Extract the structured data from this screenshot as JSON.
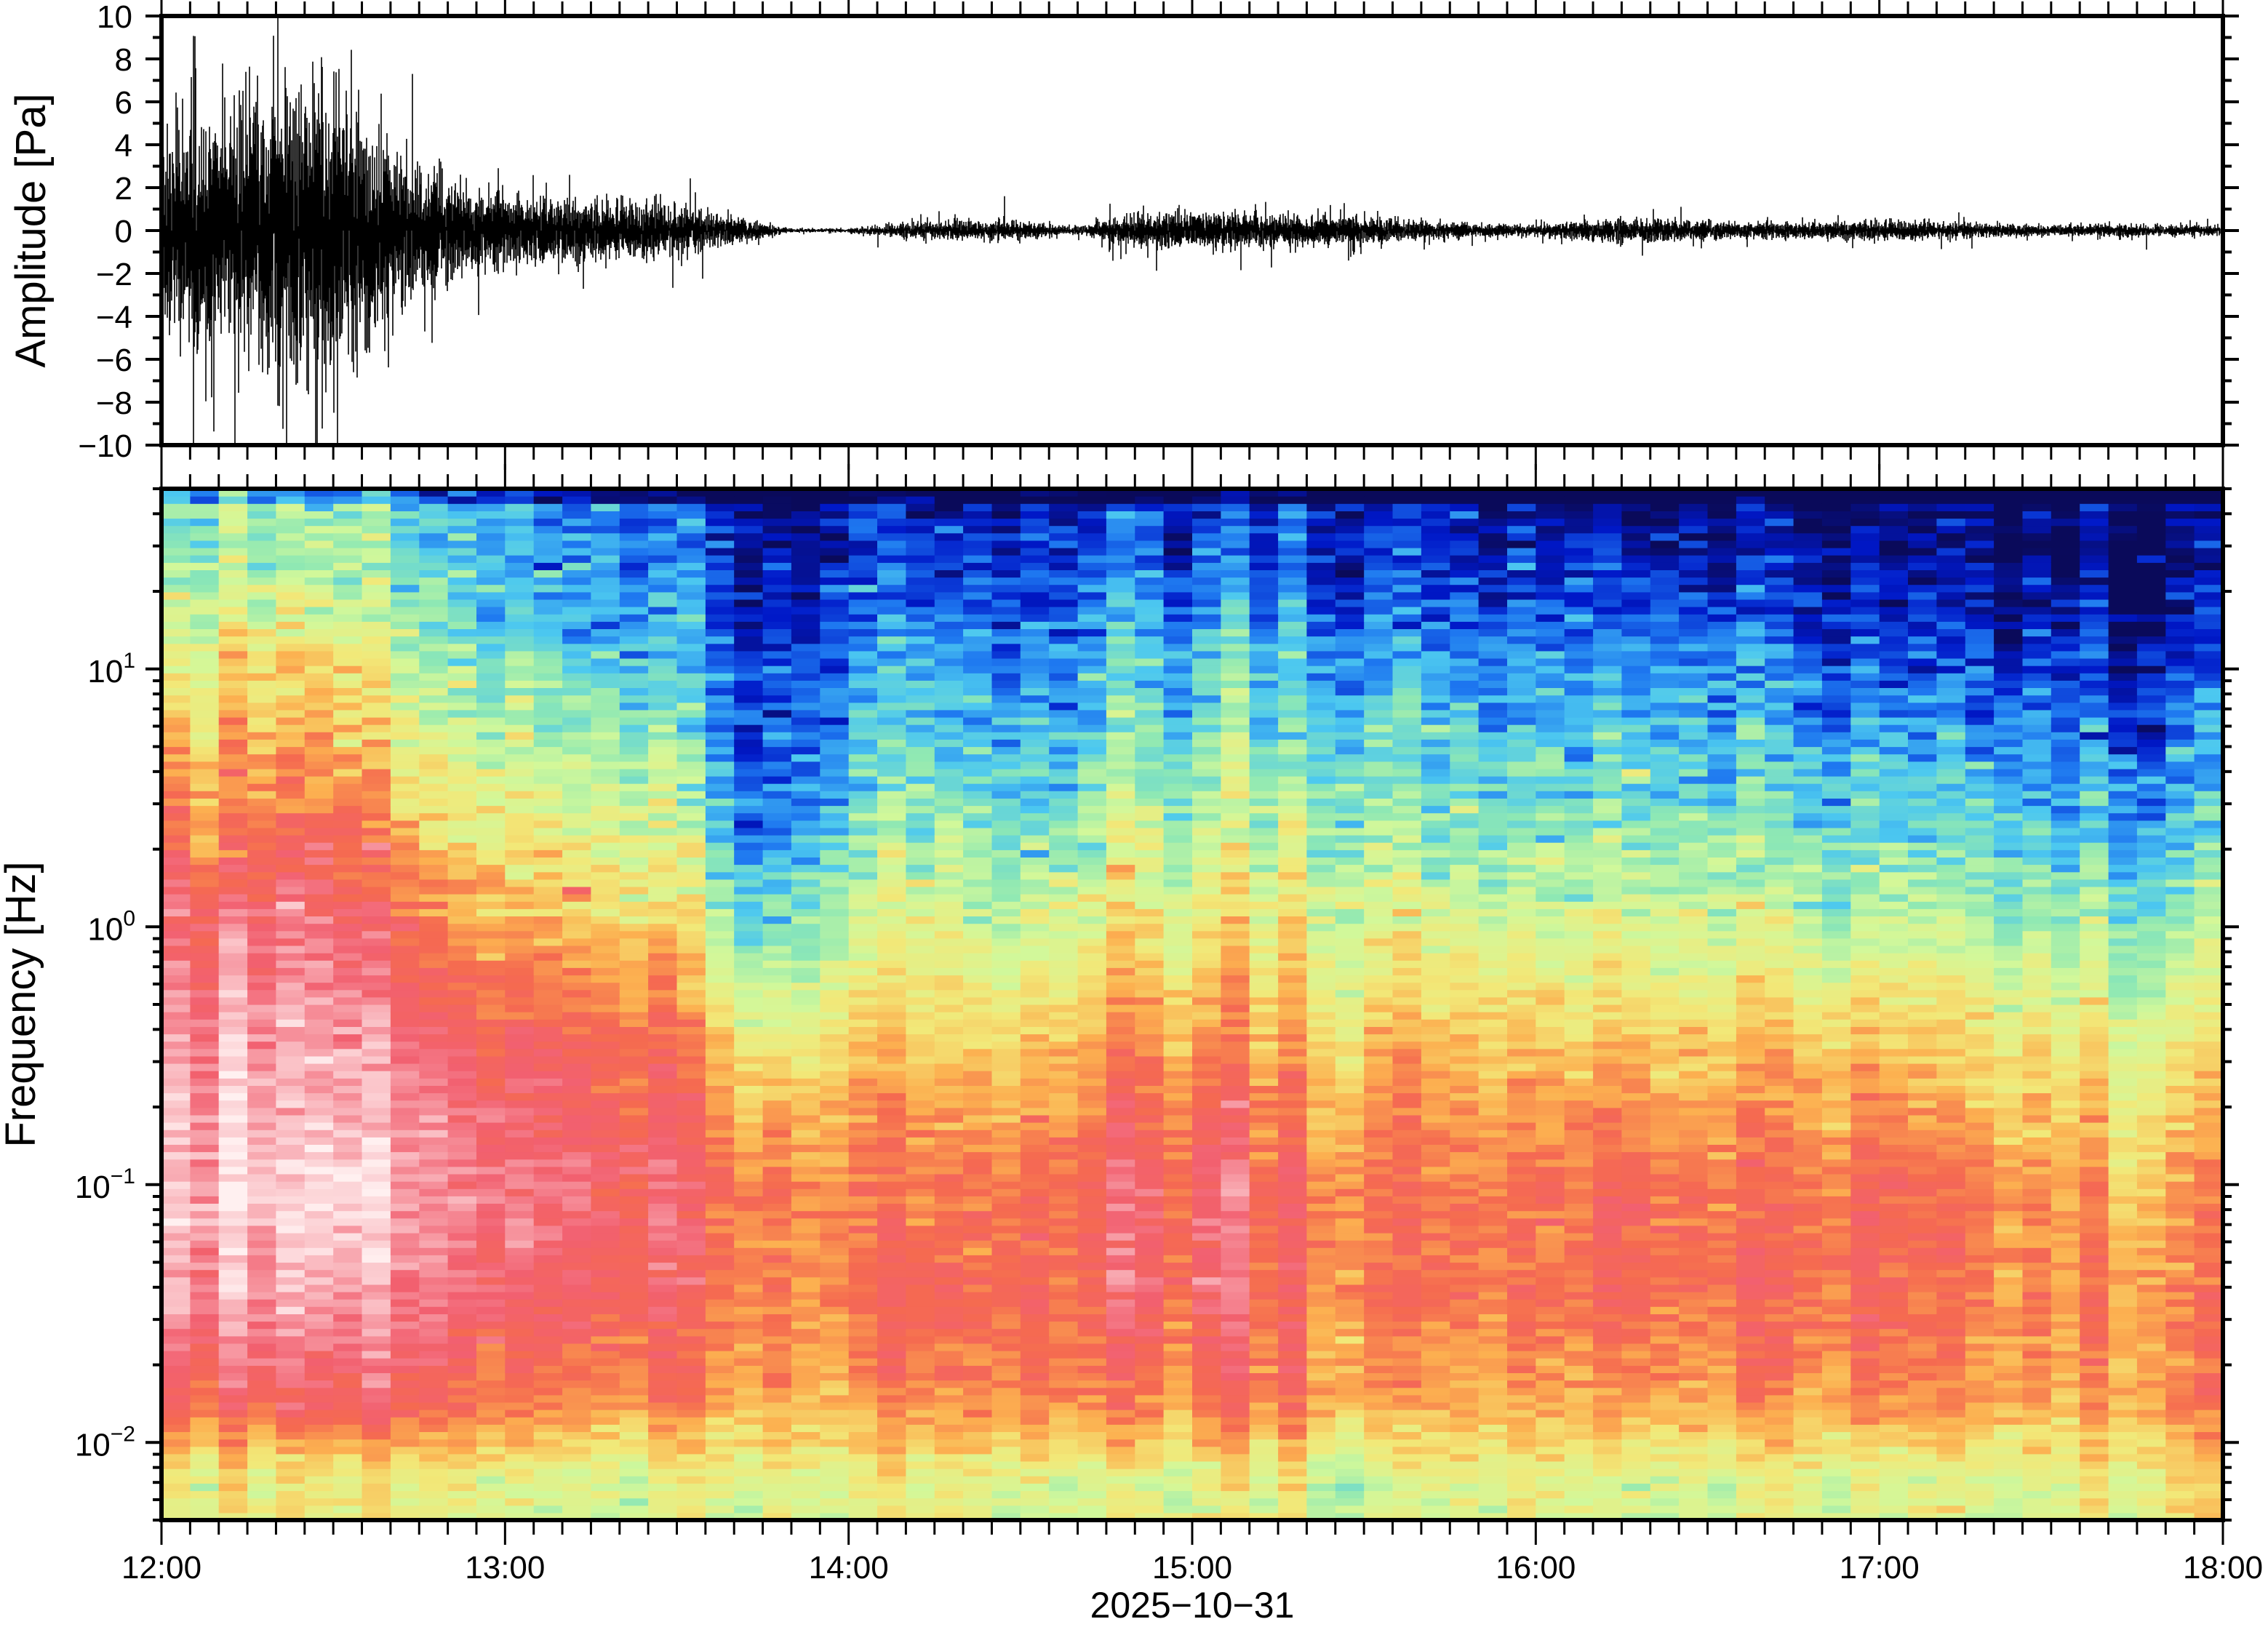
{
  "chart_data": [
    {
      "type": "line",
      "panel": "waveform",
      "ylabel": "Amplitude [Pa]",
      "ylim": [
        -10,
        10
      ],
      "y_ticks": [
        10,
        8,
        6,
        4,
        2,
        0,
        -2,
        -4,
        -6,
        -8,
        -10
      ],
      "y_tick_labels": [
        "10",
        "8",
        "6",
        "4",
        "2",
        "0",
        "−2",
        "−4",
        "−6",
        "−8",
        "−10"
      ],
      "xlim": [
        "12:00",
        "18:00"
      ],
      "envelope_times": [
        "12:00",
        "12:10",
        "12:20",
        "12:30",
        "12:40",
        "12:50",
        "13:00",
        "13:10",
        "13:20",
        "13:30",
        "13:40",
        "13:50",
        "14:00",
        "14:10",
        "14:20",
        "14:30",
        "14:40",
        "14:50",
        "15:00",
        "15:10",
        "15:20",
        "15:30",
        "15:40",
        "15:50",
        "16:00",
        "16:10",
        "16:20",
        "16:30",
        "16:40",
        "16:50",
        "17:00",
        "17:10",
        "17:20",
        "17:30",
        "17:40",
        "17:50"
      ],
      "envelope_pa": [
        4.5,
        4.2,
        6.0,
        5.5,
        3.0,
        2.0,
        1.3,
        1.2,
        1.1,
        0.9,
        0.5,
        0.08,
        0.08,
        0.3,
        0.35,
        0.35,
        0.15,
        0.6,
        0.7,
        0.6,
        0.55,
        0.5,
        0.35,
        0.25,
        0.2,
        0.4,
        0.45,
        0.35,
        0.3,
        0.3,
        0.4,
        0.3,
        0.25,
        0.2,
        0.25,
        0.2
      ],
      "color": "#000000"
    },
    {
      "type": "heatmap",
      "panel": "spectrogram",
      "ylabel": "Frequency [Hz]",
      "y_scale": "log",
      "ylim_hz": [
        0.005,
        50
      ],
      "y_tick_labels": [
        {
          "base": "10",
          "exp": "1",
          "value": 10
        },
        {
          "base": "10",
          "exp": "0",
          "value": 1
        },
        {
          "base": "10",
          "exp": "−1",
          "value": 0.1
        },
        {
          "base": "10",
          "exp": "−2",
          "value": 0.01
        }
      ],
      "xlabel": "2025−10−31",
      "x_tick_labels": [
        "12:00",
        "13:00",
        "14:00",
        "15:00",
        "16:00",
        "17:00",
        "18:00"
      ],
      "time_bin_minutes": 5,
      "colormap": [
        "#0a0a5a",
        "#0018c8",
        "#1e78f0",
        "#4cc8f0",
        "#8ee8b4",
        "#d2f89a",
        "#f2e878",
        "#fcb050",
        "#f56a50",
        "#f26070",
        "#f8a8b0",
        "#fff0f0"
      ],
      "grid_times": [
        "12:00",
        "12:15",
        "12:30",
        "12:45",
        "13:00",
        "13:15",
        "13:30",
        "13:45",
        "14:00",
        "14:15",
        "14:30",
        "14:45",
        "15:00",
        "15:15",
        "15:30",
        "15:45",
        "16:00",
        "16:15",
        "16:30",
        "16:45",
        "17:00",
        "17:15",
        "17:30",
        "17:45"
      ],
      "grid_freqs_hz": [
        0.007,
        0.015,
        0.04,
        0.1,
        0.3,
        1,
        3,
        10,
        30
      ],
      "relative_level": [
        [
          0.5,
          0.75,
          0.88,
          0.92,
          0.88,
          0.8,
          0.65,
          0.5,
          0.35
        ],
        [
          0.5,
          0.78,
          0.9,
          0.95,
          0.9,
          0.82,
          0.68,
          0.55,
          0.38
        ],
        [
          0.5,
          0.78,
          0.9,
          0.95,
          0.9,
          0.82,
          0.7,
          0.55,
          0.38
        ],
        [
          0.5,
          0.75,
          0.85,
          0.88,
          0.82,
          0.7,
          0.55,
          0.4,
          0.25
        ],
        [
          0.5,
          0.72,
          0.82,
          0.85,
          0.8,
          0.65,
          0.5,
          0.35,
          0.25
        ],
        [
          0.5,
          0.72,
          0.82,
          0.85,
          0.8,
          0.65,
          0.5,
          0.35,
          0.22
        ],
        [
          0.5,
          0.72,
          0.8,
          0.82,
          0.75,
          0.6,
          0.45,
          0.3,
          0.2
        ],
        [
          0.5,
          0.65,
          0.7,
          0.68,
          0.55,
          0.3,
          0.15,
          0.1,
          0.05
        ],
        [
          0.5,
          0.65,
          0.7,
          0.7,
          0.6,
          0.45,
          0.3,
          0.2,
          0.1
        ],
        [
          0.52,
          0.7,
          0.75,
          0.72,
          0.62,
          0.5,
          0.38,
          0.25,
          0.12
        ],
        [
          0.5,
          0.7,
          0.75,
          0.72,
          0.6,
          0.45,
          0.3,
          0.2,
          0.1
        ],
        [
          0.5,
          0.72,
          0.8,
          0.8,
          0.7,
          0.55,
          0.42,
          0.3,
          0.15
        ],
        [
          0.5,
          0.72,
          0.82,
          0.83,
          0.7,
          0.55,
          0.42,
          0.3,
          0.15
        ],
        [
          0.5,
          0.7,
          0.75,
          0.75,
          0.65,
          0.52,
          0.4,
          0.28,
          0.12
        ],
        [
          0.45,
          0.65,
          0.72,
          0.72,
          0.62,
          0.5,
          0.38,
          0.25,
          0.1
        ],
        [
          0.45,
          0.6,
          0.68,
          0.68,
          0.6,
          0.45,
          0.3,
          0.2,
          0.05
        ],
        [
          0.5,
          0.65,
          0.72,
          0.72,
          0.62,
          0.48,
          0.35,
          0.22,
          0.08
        ],
        [
          0.5,
          0.7,
          0.78,
          0.78,
          0.65,
          0.5,
          0.38,
          0.25,
          0.1
        ],
        [
          0.45,
          0.65,
          0.72,
          0.7,
          0.6,
          0.45,
          0.32,
          0.2,
          0.05
        ],
        [
          0.5,
          0.68,
          0.75,
          0.72,
          0.62,
          0.45,
          0.32,
          0.2,
          0.05
        ],
        [
          0.5,
          0.72,
          0.78,
          0.78,
          0.65,
          0.45,
          0.32,
          0.18,
          0.05
        ],
        [
          0.5,
          0.68,
          0.72,
          0.7,
          0.6,
          0.45,
          0.3,
          0.15,
          0.03
        ],
        [
          0.5,
          0.68,
          0.7,
          0.68,
          0.58,
          0.42,
          0.28,
          0.15,
          0.03
        ],
        [
          0.55,
          0.7,
          0.7,
          0.65,
          0.55,
          0.4,
          0.25,
          0.12,
          0.02
        ]
      ]
    }
  ]
}
